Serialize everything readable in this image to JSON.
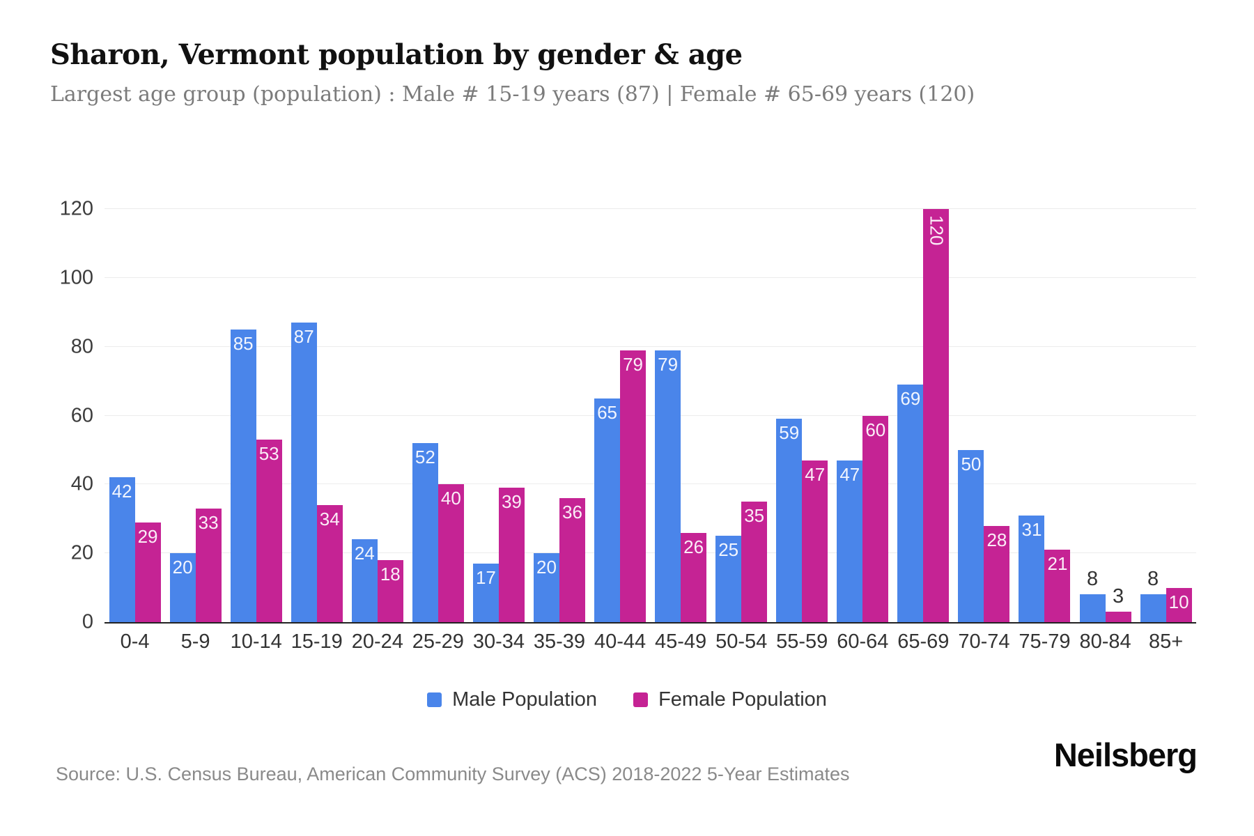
{
  "title": "Sharon, Vermont population by gender & age",
  "subtitle": "Largest age group (population) : Male # 15-19 years (87) | Female # 65-69 years (120)",
  "source": "Source: U.S. Census Bureau, American Community Survey (ACS) 2018-2022 5-Year Estimates",
  "brand": "Neilsberg",
  "colors": {
    "male": "#4a85ea",
    "female": "#c52394",
    "grid": "#ececec",
    "axis": "#222222",
    "tick_label": "#3c3c3c",
    "subtitle_text": "#7b7b7b",
    "source_text": "#8a8a8a",
    "bar_label_inside": "rgba(255,255,255,0.92)",
    "bar_label_outside": "#333333"
  },
  "chart_data": {
    "type": "bar",
    "title": "Sharon, Vermont population by gender & age",
    "xlabel": "",
    "ylabel": "",
    "categories": [
      "0-4",
      "5-9",
      "10-14",
      "15-19",
      "20-24",
      "25-29",
      "30-34",
      "35-39",
      "40-44",
      "45-49",
      "50-54",
      "55-59",
      "60-64",
      "65-69",
      "70-74",
      "75-79",
      "80-84",
      "85+"
    ],
    "series": [
      {
        "name": "Male Population",
        "color": "#4a85ea",
        "values": [
          42,
          20,
          85,
          87,
          24,
          52,
          17,
          20,
          65,
          79,
          25,
          59,
          47,
          69,
          50,
          31,
          8,
          8
        ]
      },
      {
        "name": "Female Population",
        "color": "#c52394",
        "values": [
          29,
          33,
          53,
          34,
          18,
          40,
          39,
          36,
          79,
          26,
          35,
          47,
          60,
          120,
          28,
          21,
          3,
          10
        ]
      }
    ],
    "yticks": [
      0,
      20,
      40,
      60,
      80,
      100,
      120
    ],
    "ylim": [
      0,
      120
    ],
    "grid": true,
    "legend_position": "bottom"
  }
}
